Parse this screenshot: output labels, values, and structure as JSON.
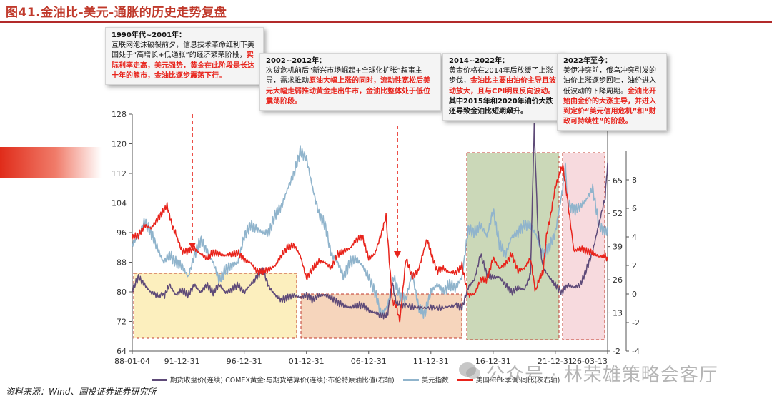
{
  "title": "图41.金油比-美元-通胀的历史走势复盘",
  "source": "资料来源：Wind、国投证券证券研究所",
  "watermark": "公众号 · 林荣雄策略会客厅",
  "colors": {
    "gold_oil": "#5e4a78",
    "usd": "#90b4cc",
    "cpi": "#e8231b",
    "accent": "#c0392b"
  },
  "icons": {
    "watermark": "wechat-icon"
  },
  "annotations": [
    {
      "heading": "1990年代~2001年：",
      "black": "互联网泡沫破裂前夕，信息技术革命红利下美国处于“高增长+低通胀”的经济繁荣阶段，",
      "red": "实际利率走高，美元强势，黄金在此阶段是长达十年的熊市，金油比逐步震荡下行。"
    },
    {
      "heading": "2002~2012年：",
      "black": "次贷危机前后“新兴市场崛起+全球化扩张”叙事主导，需求推动",
      "red": "原油大幅上涨的同时，流动性宽松后美元大幅走弱推动黄金走出牛市，金油比整体处于低位震荡阶段。"
    },
    {
      "heading": "2014~2022年：",
      "black": "黄金价格在2014年后放缓了上涨步伐，",
      "red": "金油比主要由油价主导且波动放大，且与CPI明显反向波动。",
      "black2": "其中2015年和2020年油价大跌还导致金油比短期飙升。"
    },
    {
      "heading": "2022年至今：",
      "black": "美伊冲突前，俄乌冲突引发的油价上涨逐步回吐，油价进入低波动的下降周期。",
      "red": "金油比开始由金价的大涨主导，并进入到定价“美元信用危机”和“财政可持续性”的阶段。"
    }
  ],
  "chart_data": {
    "type": "line",
    "x_ticks": [
      "88-01-04",
      "91-12-31",
      "96-12-31",
      "01-12-31",
      "06-12-31",
      "11-12-31",
      "16-12-31",
      "21-12-31",
      "26-03-13"
    ],
    "y_left_ticks": [
      64,
      72,
      80,
      88,
      96,
      104,
      112,
      120,
      128
    ],
    "y_left_lim": [
      64,
      128
    ],
    "y_right1_ticks": [
      -2,
      13,
      26,
      39,
      52,
      65,
      78
    ],
    "y_right1_lim": [
      -2,
      91
    ],
    "y_right2_ticks": [
      -4,
      -2,
      0,
      2,
      4,
      6,
      8
    ],
    "y_right2_lim": [
      -4,
      10
    ],
    "grid": false,
    "legend_position": "bottom",
    "series": [
      {
        "name": "期货收盘价(连续):COMEX黄金:与期货结算价(连续):布伦特原油比值(右轴)",
        "axis": "right1",
        "x": [
          1988.0,
          1988.5,
          1989.0,
          1989.5,
          1990.0,
          1990.6,
          1991.0,
          1991.5,
          1992.0,
          1992.5,
          1993.0,
          1993.5,
          1994.0,
          1994.5,
          1995.0,
          1995.5,
          1996.0,
          1996.5,
          1997.0,
          1997.5,
          1998.0,
          1998.5,
          1999.0,
          1999.5,
          2000.0,
          2000.5,
          2001.0,
          2001.5,
          2002.0,
          2002.5,
          2003.0,
          2003.5,
          2004.0,
          2004.5,
          2005.0,
          2005.5,
          2006.0,
          2006.5,
          2007.0,
          2007.5,
          2008.0,
          2008.5,
          2008.9,
          2009.2,
          2009.6,
          2010.0,
          2011.0,
          2012.0,
          2013.0,
          2014.0,
          2014.5,
          2015.0,
          2015.5,
          2016.0,
          2016.5,
          2017.0,
          2017.5,
          2018.0,
          2018.5,
          2019.0,
          2019.5,
          2020.0,
          2020.3,
          2020.6,
          2021.0,
          2021.5,
          2022.0,
          2022.5,
          2023.0,
          2023.5,
          2024.0,
          2024.5,
          2025.0,
          2025.5,
          2026.0,
          2026.2
        ],
        "values": [
          22,
          27,
          24,
          21,
          20,
          20,
          24,
          20,
          22,
          20,
          24,
          21,
          24,
          21,
          24,
          21,
          22,
          24,
          21,
          24,
          27,
          30,
          23,
          20,
          18,
          19,
          20,
          19,
          20,
          18,
          20,
          20,
          19,
          17,
          16,
          15,
          16,
          16,
          14,
          13,
          12,
          12,
          25,
          17,
          16,
          16,
          15,
          15,
          15,
          16,
          15,
          23,
          26,
          36,
          28,
          27,
          27,
          24,
          21,
          23,
          22,
          28,
          86,
          45,
          31,
          27,
          24,
          21,
          24,
          23,
          24,
          30,
          37,
          48,
          58,
          72
        ]
      },
      {
        "name": "美元指数",
        "axis": "left",
        "x": [
          1988.0,
          1988.5,
          1989.0,
          1989.5,
          1990.0,
          1990.5,
          1991.0,
          1991.5,
          1992.0,
          1992.5,
          1993.0,
          1993.5,
          1994.0,
          1994.5,
          1995.0,
          1995.5,
          1996.0,
          1996.5,
          1997.0,
          1997.5,
          1998.0,
          1998.5,
          1999.0,
          1999.5,
          2000.0,
          2000.5,
          2001.0,
          2001.5,
          2002.0,
          2002.5,
          2003.0,
          2003.5,
          2004.0,
          2004.5,
          2005.0,
          2005.5,
          2006.0,
          2006.5,
          2007.0,
          2007.5,
          2008.0,
          2008.5,
          2009.0,
          2009.5,
          2010.0,
          2010.5,
          2011.0,
          2011.5,
          2012.0,
          2012.5,
          2013.0,
          2013.5,
          2014.0,
          2014.5,
          2015.0,
          2015.5,
          2016.0,
          2016.5,
          2017.0,
          2017.5,
          2018.0,
          2018.5,
          2019.0,
          2019.5,
          2020.0,
          2020.5,
          2021.0,
          2021.5,
          2022.0,
          2022.5,
          2022.8,
          2023.0,
          2023.5,
          2024.0,
          2024.5,
          2025.0,
          2025.5,
          2026.0,
          2026.2
        ],
        "values": [
          93,
          95,
          99,
          96,
          92,
          88,
          90,
          88,
          87,
          84,
          90,
          94,
          91,
          88,
          83,
          86,
          87,
          88,
          95,
          98,
          97,
          96,
          96,
          101,
          103,
          108,
          112,
          118,
          116,
          108,
          101,
          98,
          90,
          88,
          84,
          88,
          89,
          87,
          84,
          80,
          74,
          76,
          84,
          79,
          78,
          85,
          76,
          74,
          80,
          82,
          80,
          82,
          81,
          84,
          97,
          96,
          98,
          95,
          102,
          93,
          90,
          95,
          96,
          98,
          98,
          95,
          90,
          92,
          96,
          106,
          114,
          104,
          102,
          103,
          105,
          108,
          98,
          96,
          97
        ]
      },
      {
        "name": "美国:CPI:季调:同比(次右轴)",
        "axis": "right2",
        "x": [
          1988.0,
          1988.5,
          1989.0,
          1989.5,
          1990.0,
          1990.5,
          1990.8,
          1991.2,
          1991.5,
          1992.0,
          1992.5,
          1993.0,
          1993.5,
          1994.0,
          1994.5,
          1995.0,
          1995.5,
          1996.0,
          1996.5,
          1997.0,
          1997.5,
          1998.0,
          1998.5,
          1999.0,
          1999.5,
          2000.0,
          2000.5,
          2001.0,
          2001.5,
          2002.0,
          2002.5,
          2003.0,
          2003.5,
          2004.0,
          2004.5,
          2005.0,
          2005.5,
          2006.0,
          2006.5,
          2007.0,
          2007.5,
          2008.0,
          2008.4,
          2008.9,
          2009.2,
          2009.5,
          2010.0,
          2010.5,
          2011.0,
          2011.7,
          2012.0,
          2012.5,
          2013.0,
          2013.5,
          2014.0,
          2014.5,
          2015.0,
          2015.5,
          2016.0,
          2016.5,
          2017.0,
          2017.5,
          2018.0,
          2018.5,
          2019.0,
          2019.5,
          2020.0,
          2020.4,
          2020.8,
          2021.0,
          2021.3,
          2021.6,
          2022.0,
          2022.4,
          2022.6,
          2022.9,
          2023.0,
          2023.5,
          2024.0,
          2024.5,
          2025.0,
          2025.5,
          2026.0,
          2026.2
        ],
        "values": [
          4.0,
          4.1,
          4.8,
          4.6,
          5.2,
          5.8,
          6.2,
          4.8,
          4.2,
          3.0,
          3.0,
          3.2,
          2.8,
          2.5,
          2.9,
          2.8,
          2.7,
          2.8,
          2.9,
          2.4,
          2.2,
          1.6,
          1.6,
          1.7,
          2.0,
          2.7,
          3.3,
          3.4,
          2.7,
          1.1,
          1.8,
          2.3,
          2.2,
          1.8,
          2.8,
          3.0,
          3.2,
          3.8,
          4.0,
          2.5,
          2.8,
          4.2,
          5.4,
          -0.5,
          -0.8,
          -1.9,
          2.5,
          1.2,
          1.6,
          3.8,
          2.9,
          1.6,
          1.8,
          1.5,
          1.5,
          2.0,
          -0.1,
          0.0,
          1.0,
          1.0,
          2.5,
          1.8,
          2.1,
          2.8,
          1.6,
          1.8,
          2.5,
          0.2,
          1.3,
          1.4,
          4.2,
          5.4,
          7.5,
          8.6,
          9.0,
          7.1,
          6.4,
          3.0,
          3.2,
          3.0,
          2.9,
          2.6,
          2.7,
          2.4
        ]
      }
    ]
  }
}
